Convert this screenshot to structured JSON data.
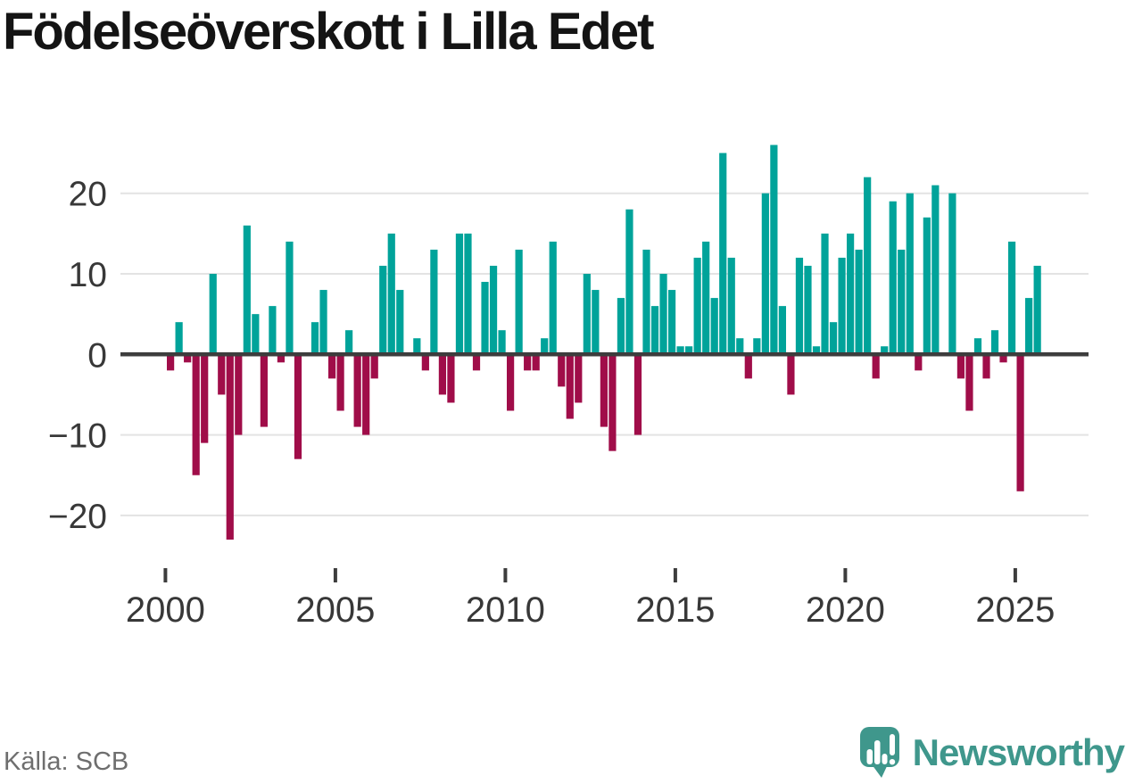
{
  "title": "Födelseöverskott i Lilla Edet",
  "source": "Källa: SCB",
  "logo": {
    "text": "Newsworthy"
  },
  "chart_data": {
    "type": "bar",
    "title": "Födelseöverskott i Lilla Edet",
    "xlabel": "",
    "ylabel": "",
    "ylim": [
      -25,
      28
    ],
    "grid": "horizontal",
    "legend": "none",
    "colors": {
      "positive": "#00a39a",
      "negative": "#a00d49"
    },
    "yticks": [
      {
        "value": 20,
        "label": "20"
      },
      {
        "value": 10,
        "label": "10"
      },
      {
        "value": 0,
        "label": "0"
      },
      {
        "value": -10,
        "label": "−10"
      },
      {
        "value": -20,
        "label": "−20"
      }
    ],
    "xticks": [
      {
        "value": 2000,
        "label": "2000"
      },
      {
        "value": 2005,
        "label": "2005"
      },
      {
        "value": 2010,
        "label": "2010"
      },
      {
        "value": 2015,
        "label": "2015"
      },
      {
        "value": 2020,
        "label": "2020"
      },
      {
        "value": 2025,
        "label": "2025"
      }
    ],
    "categories": [
      "2000Q1",
      "2000Q2",
      "2000Q3",
      "2000Q4",
      "2001Q1",
      "2001Q2",
      "2001Q3",
      "2001Q4",
      "2002Q1",
      "2002Q2",
      "2002Q3",
      "2002Q4",
      "2003Q1",
      "2003Q2",
      "2003Q3",
      "2003Q4",
      "2004Q1",
      "2004Q2",
      "2004Q3",
      "2004Q4",
      "2005Q1",
      "2005Q2",
      "2005Q3",
      "2005Q4",
      "2006Q1",
      "2006Q2",
      "2006Q3",
      "2006Q4",
      "2007Q1",
      "2007Q2",
      "2007Q3",
      "2007Q4",
      "2008Q1",
      "2008Q2",
      "2008Q3",
      "2008Q4",
      "2009Q1",
      "2009Q2",
      "2009Q3",
      "2009Q4",
      "2010Q1",
      "2010Q2",
      "2010Q3",
      "2010Q4",
      "2011Q1",
      "2011Q2",
      "2011Q3",
      "2011Q4",
      "2012Q1",
      "2012Q2",
      "2012Q3",
      "2012Q4",
      "2013Q1",
      "2013Q2",
      "2013Q3",
      "2013Q4",
      "2014Q1",
      "2014Q2",
      "2014Q3",
      "2014Q4",
      "2015Q1",
      "2015Q2",
      "2015Q3",
      "2015Q4",
      "2016Q1",
      "2016Q2",
      "2016Q3",
      "2016Q4",
      "2017Q1",
      "2017Q2",
      "2017Q3",
      "2017Q4",
      "2018Q1",
      "2018Q2",
      "2018Q3",
      "2018Q4",
      "2019Q1",
      "2019Q2",
      "2019Q3",
      "2019Q4",
      "2020Q1",
      "2020Q2",
      "2020Q3",
      "2020Q4",
      "2021Q1",
      "2021Q2",
      "2021Q3",
      "2021Q4",
      "2022Q1",
      "2022Q2",
      "2022Q3",
      "2022Q4",
      "2023Q1",
      "2023Q2",
      "2023Q3",
      "2023Q4",
      "2024Q1",
      "2024Q2",
      "2024Q3",
      "2024Q4",
      "2025Q1",
      "2025Q2",
      "2025Q3"
    ],
    "values": [
      -2,
      4,
      -1,
      -15,
      -11,
      10,
      -5,
      -23,
      -10,
      16,
      5,
      -9,
      6,
      -1,
      14,
      -13,
      0,
      4,
      8,
      -3,
      -7,
      3,
      -9,
      -10,
      -3,
      11,
      15,
      8,
      0,
      2,
      -2,
      13,
      -5,
      -6,
      15,
      15,
      -2,
      9,
      11,
      3,
      -7,
      13,
      -2,
      -2,
      2,
      14,
      -4,
      -8,
      -6,
      10,
      8,
      -9,
      -12,
      7,
      18,
      -10,
      13,
      6,
      10,
      8,
      1,
      1,
      12,
      14,
      7,
      25,
      12,
      2,
      -3,
      2,
      20,
      26,
      6,
      -5,
      12,
      11,
      1,
      15,
      4,
      12,
      15,
      13,
      22,
      -3,
      1,
      19,
      13,
      20,
      -2,
      17,
      21,
      0,
      20,
      -3,
      -7,
      2,
      -3,
      3,
      -1,
      14,
      -17,
      7,
      11
    ]
  }
}
